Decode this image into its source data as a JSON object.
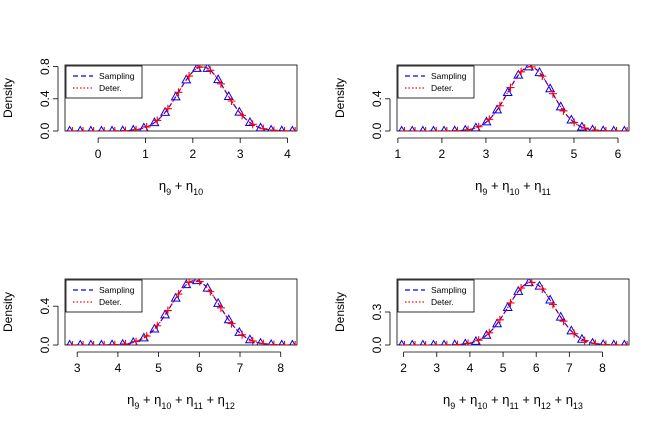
{
  "chart_data": [
    {
      "type": "line",
      "title": "",
      "xlabel": "η9 + η10",
      "xlabel_parts": [
        "η",
        "9",
        " + ",
        "η",
        "10"
      ],
      "ylabel": "Density",
      "xlim": [
        -0.7,
        4.2
      ],
      "ylim": [
        0,
        0.82
      ],
      "xticks": [
        0,
        1,
        2,
        3,
        4
      ],
      "yticks": [
        0.0,
        0.4,
        0.8
      ],
      "ytick_labels": [
        "0.0",
        "0.4",
        "0.8"
      ],
      "legend": {
        "position": "top-left",
        "entries": [
          "Sampling",
          "Deter."
        ]
      },
      "series": [
        {
          "name": "Sampling",
          "color": "#0000ff",
          "style": "dashed",
          "marker": "triangle",
          "mean": 2.2,
          "sd": 0.5
        },
        {
          "name": "Deter.",
          "color": "#ff0000",
          "style": "dotted",
          "marker": "plus",
          "mean": 2.2,
          "sd": 0.5
        }
      ],
      "n_points": 22
    },
    {
      "type": "line",
      "title": "",
      "xlabel": "η9 + η10 + η11",
      "xlabel_parts": [
        "η",
        "9",
        " + ",
        "η",
        "10",
        " + ",
        "η",
        "11"
      ],
      "ylabel": "Density",
      "xlim": [
        0.98,
        6.25
      ],
      "ylim": [
        0,
        0.82
      ],
      "xticks": [
        1,
        2,
        3,
        4,
        5,
        6
      ],
      "yticks": [
        0.0,
        0.4
      ],
      "ytick_labels": [
        "0.0",
        "0.4"
      ],
      "legend": {
        "position": "top-left",
        "entries": [
          "Sampling",
          "Deter."
        ]
      },
      "series": [
        {
          "name": "Sampling",
          "color": "#0000ff",
          "style": "dashed",
          "marker": "triangle",
          "mean": 4.0,
          "sd": 0.5
        },
        {
          "name": "Deter.",
          "color": "#ff0000",
          "style": "dotted",
          "marker": "plus",
          "mean": 4.0,
          "sd": 0.5
        }
      ],
      "n_points": 22
    },
    {
      "type": "line",
      "title": "",
      "xlabel": "η9 + η10 + η11 + η12",
      "xlabel_parts": [
        "η",
        "9",
        " + ",
        "η",
        "10",
        " + ",
        "η",
        "11",
        " + ",
        "η",
        "12"
      ],
      "ylabel": "Density",
      "xlim": [
        2.7,
        8.4
      ],
      "ylim": [
        0,
        0.68
      ],
      "xticks": [
        3,
        4,
        5,
        6,
        7,
        8
      ],
      "yticks": [
        0.0,
        0.4
      ],
      "ytick_labels": [
        "0.0",
        "0.4"
      ],
      "legend": {
        "position": "top-left",
        "entries": [
          "Sampling",
          "Deter."
        ]
      },
      "series": [
        {
          "name": "Sampling",
          "color": "#0000ff",
          "style": "dashed",
          "marker": "triangle",
          "mean": 5.9,
          "sd": 0.6
        },
        {
          "name": "Deter.",
          "color": "#ff0000",
          "style": "dotted",
          "marker": "plus",
          "mean": 5.9,
          "sd": 0.6
        }
      ],
      "n_points": 22
    },
    {
      "type": "line",
      "title": "",
      "xlabel": "η9 + η10 + η11 + η12 + η13",
      "xlabel_parts": [
        "η",
        "9",
        " + ",
        "η",
        "10",
        " + ",
        "η",
        "11",
        " + ",
        "η",
        "12",
        " + ",
        "η",
        "13"
      ],
      "ylabel": "Density",
      "xlim": [
        1.8,
        8.8
      ],
      "ylim": [
        0,
        0.6
      ],
      "xticks": [
        2,
        3,
        4,
        5,
        6,
        7,
        8
      ],
      "yticks": [
        0.0,
        0.3
      ],
      "ytick_labels": [
        "0.0",
        "0.3"
      ],
      "legend": {
        "position": "top-left",
        "entries": [
          "Sampling",
          "Deter."
        ]
      },
      "series": [
        {
          "name": "Sampling",
          "color": "#0000ff",
          "style": "dashed",
          "marker": "triangle",
          "mean": 5.85,
          "sd": 0.7
        },
        {
          "name": "Deter.",
          "color": "#ff0000",
          "style": "dotted",
          "marker": "plus",
          "mean": 5.85,
          "sd": 0.7
        }
      ],
      "n_points": 22
    }
  ]
}
